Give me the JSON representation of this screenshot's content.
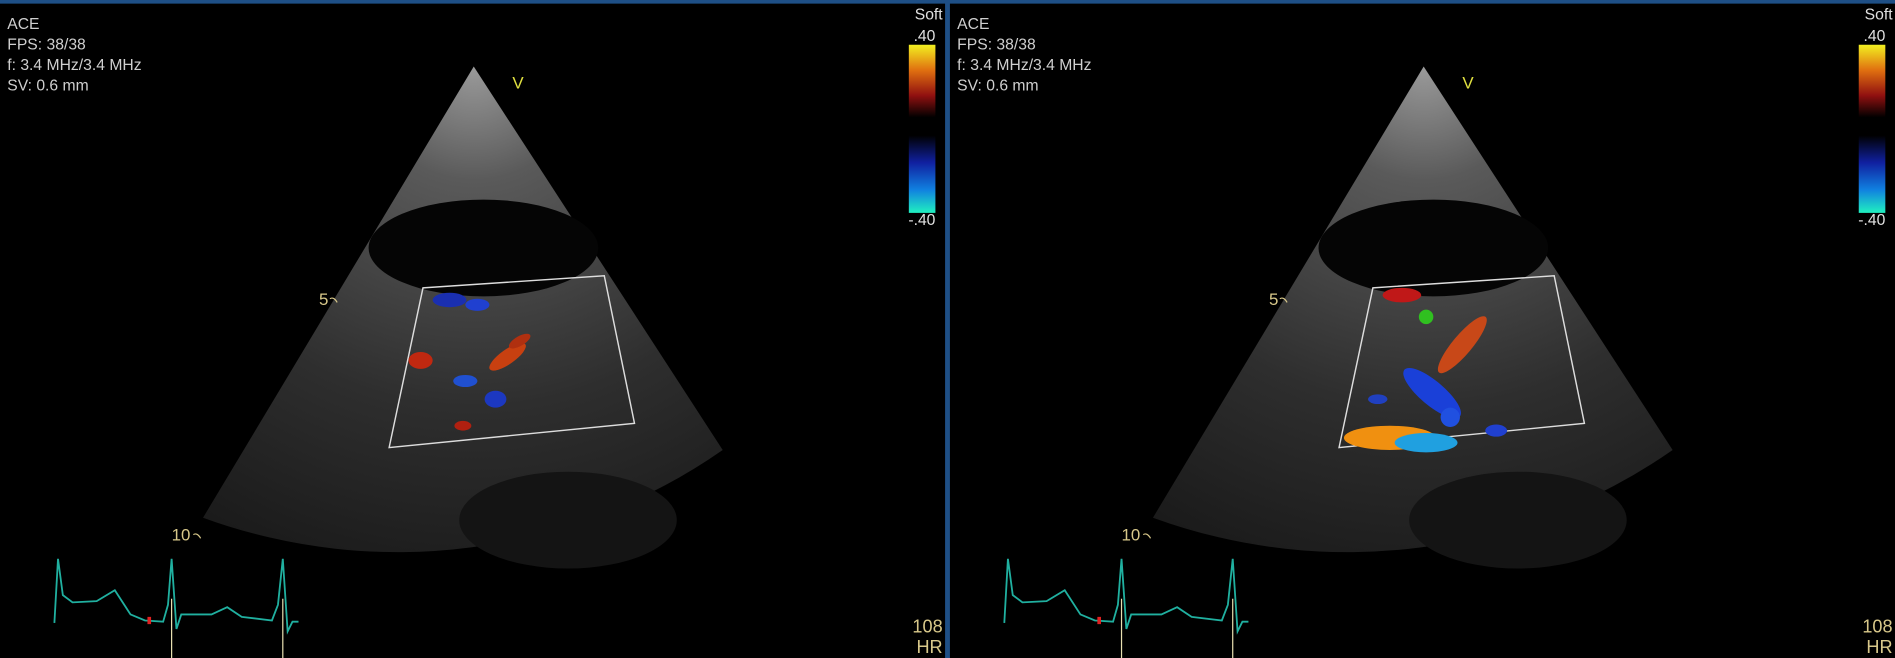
{
  "panels": [
    {
      "mode": "ACE",
      "fps": "FPS: 38/38",
      "frequency": "f: 3.4 MHz/3.4 MHz",
      "sample_volume": "SV: 0.6 mm",
      "orientation_marker": "V",
      "depth_markers": [
        "5",
        "10"
      ],
      "color_map": {
        "name": "Soft",
        "max": ".40",
        "min": "-.40"
      },
      "heart_rate": {
        "value": "108",
        "label": "HR"
      }
    },
    {
      "mode": "ACE",
      "fps": "FPS: 38/38",
      "frequency": "f: 3.4 MHz/3.4 MHz",
      "sample_volume": "SV: 0.6 mm",
      "orientation_marker": "V",
      "depth_markers": [
        "5",
        "10"
      ],
      "color_map": {
        "name": "Soft",
        "max": ".40",
        "min": "-.40"
      },
      "heart_rate": {
        "value": "108",
        "label": "HR"
      }
    }
  ]
}
